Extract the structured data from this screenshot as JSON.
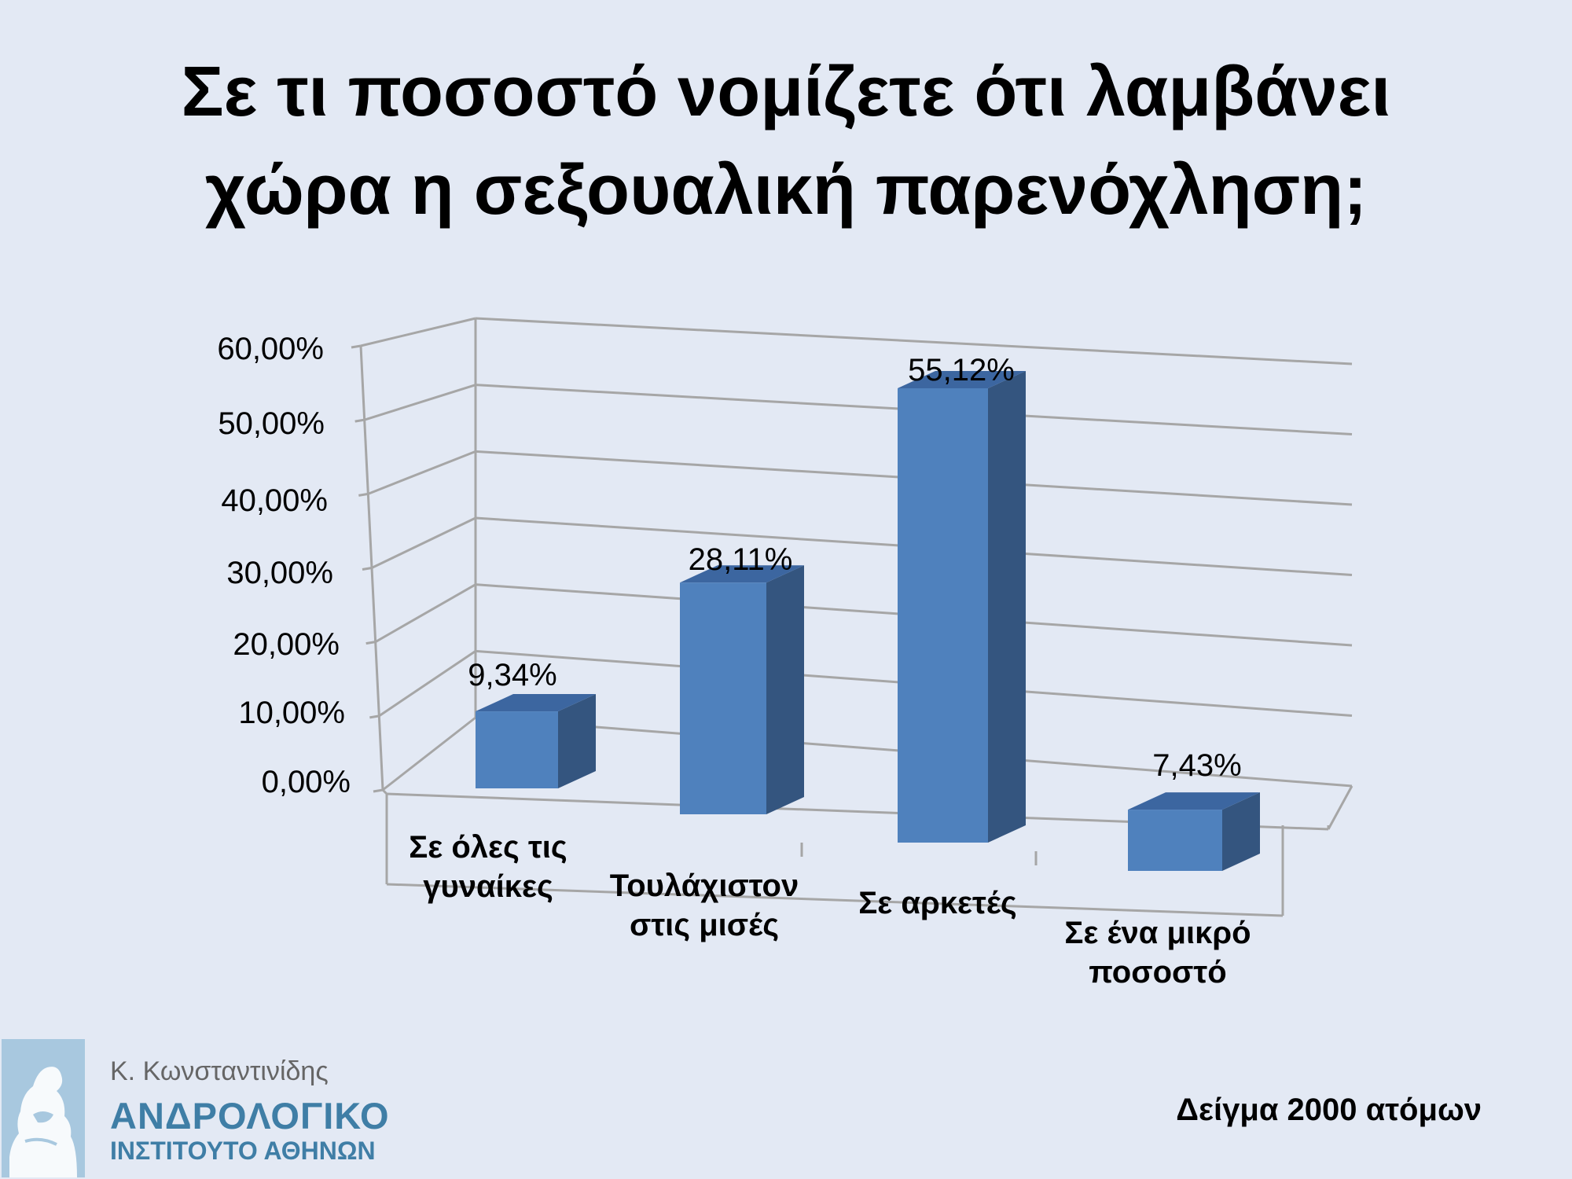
{
  "slide": {
    "title_line1": "Σε τι ποσοστό νομίζετε ότι λαμβάνει",
    "title_line2": "χώρα η σεξουαλική παρενόχληση;",
    "sample_note": "Δείγμα 2000 ατόμων"
  },
  "logo": {
    "author": "Κ. Κωνσταντινίδης",
    "institute_line1": "ΑΝΔΡΟΛΟΓΙΚΟ",
    "institute_line2": "ΙΝΣΤΙΤΟΥΤΟ ΑΘΗΝΩΝ",
    "icon": "thinker-statue-icon"
  },
  "chart_data": {
    "type": "bar",
    "style": "3d-column",
    "title": "",
    "xlabel": "",
    "ylabel": "",
    "ylim": [
      0,
      60
    ],
    "yticks": [
      "0,00%",
      "10,00%",
      "20,00%",
      "30,00%",
      "40,00%",
      "50,00%",
      "60,00%"
    ],
    "ytick_values": [
      0,
      10,
      20,
      30,
      40,
      50,
      60
    ],
    "grid": true,
    "legend": "none",
    "categories": [
      [
        "Σε όλες τις",
        "γυναίκες"
      ],
      [
        "Τουλάχιστον",
        "στις μισές"
      ],
      [
        "Σε αρκετές"
      ],
      [
        "Σε ένα μικρό",
        "ποσοστό"
      ]
    ],
    "values": [
      9.34,
      28.11,
      55.12,
      7.43
    ],
    "data_labels": [
      "9,34%",
      "28,11%",
      "55,12%",
      "7,43%"
    ],
    "colors": {
      "front": "#4f81bd",
      "side": "#34557f",
      "top": "#3c66a0"
    }
  }
}
